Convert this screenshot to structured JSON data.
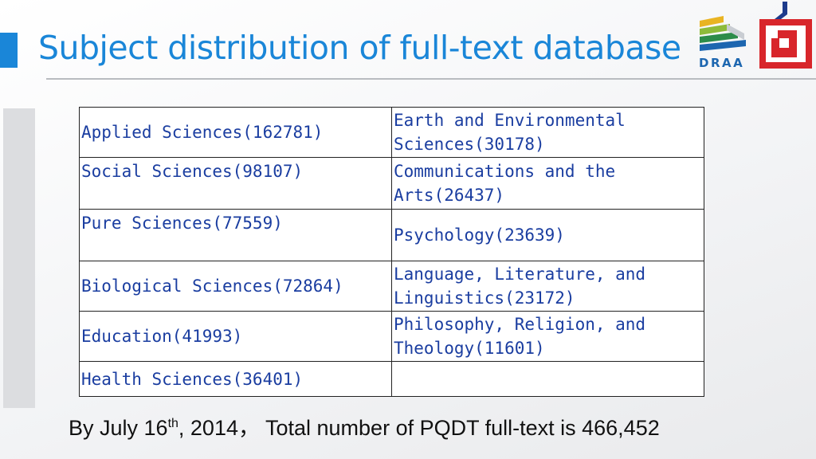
{
  "slide": {
    "title": "Subject distribution of full-text database",
    "logo_text": "DRAA"
  },
  "table": {
    "rows": [
      [
        "Applied Sciences(162781)",
        "Earth and Environmental Sciences(30178)"
      ],
      [
        "Social Sciences(98107)",
        "Communications and the Arts(26437)"
      ],
      [
        "Pure Sciences(77559)",
        "Psychology(23639)"
      ],
      [
        "Biological Sciences(72864)",
        "Language, Literature, and Linguistics(23172)"
      ],
      [
        "Education(41993)",
        "Philosophy, Religion, and Theology(11601)"
      ],
      [
        "Health Sciences(36401)",
        ""
      ]
    ]
  },
  "footer": {
    "prefix": "By July 16",
    "superscript": "th",
    "suffix": ", 2014， Total number of PQDT full-text  is 466,452"
  },
  "colors": {
    "title": "#1a86d8",
    "table_text": "#1a3da0",
    "logo_red": "#d8262b",
    "logo_navy": "#1d3b8c"
  }
}
